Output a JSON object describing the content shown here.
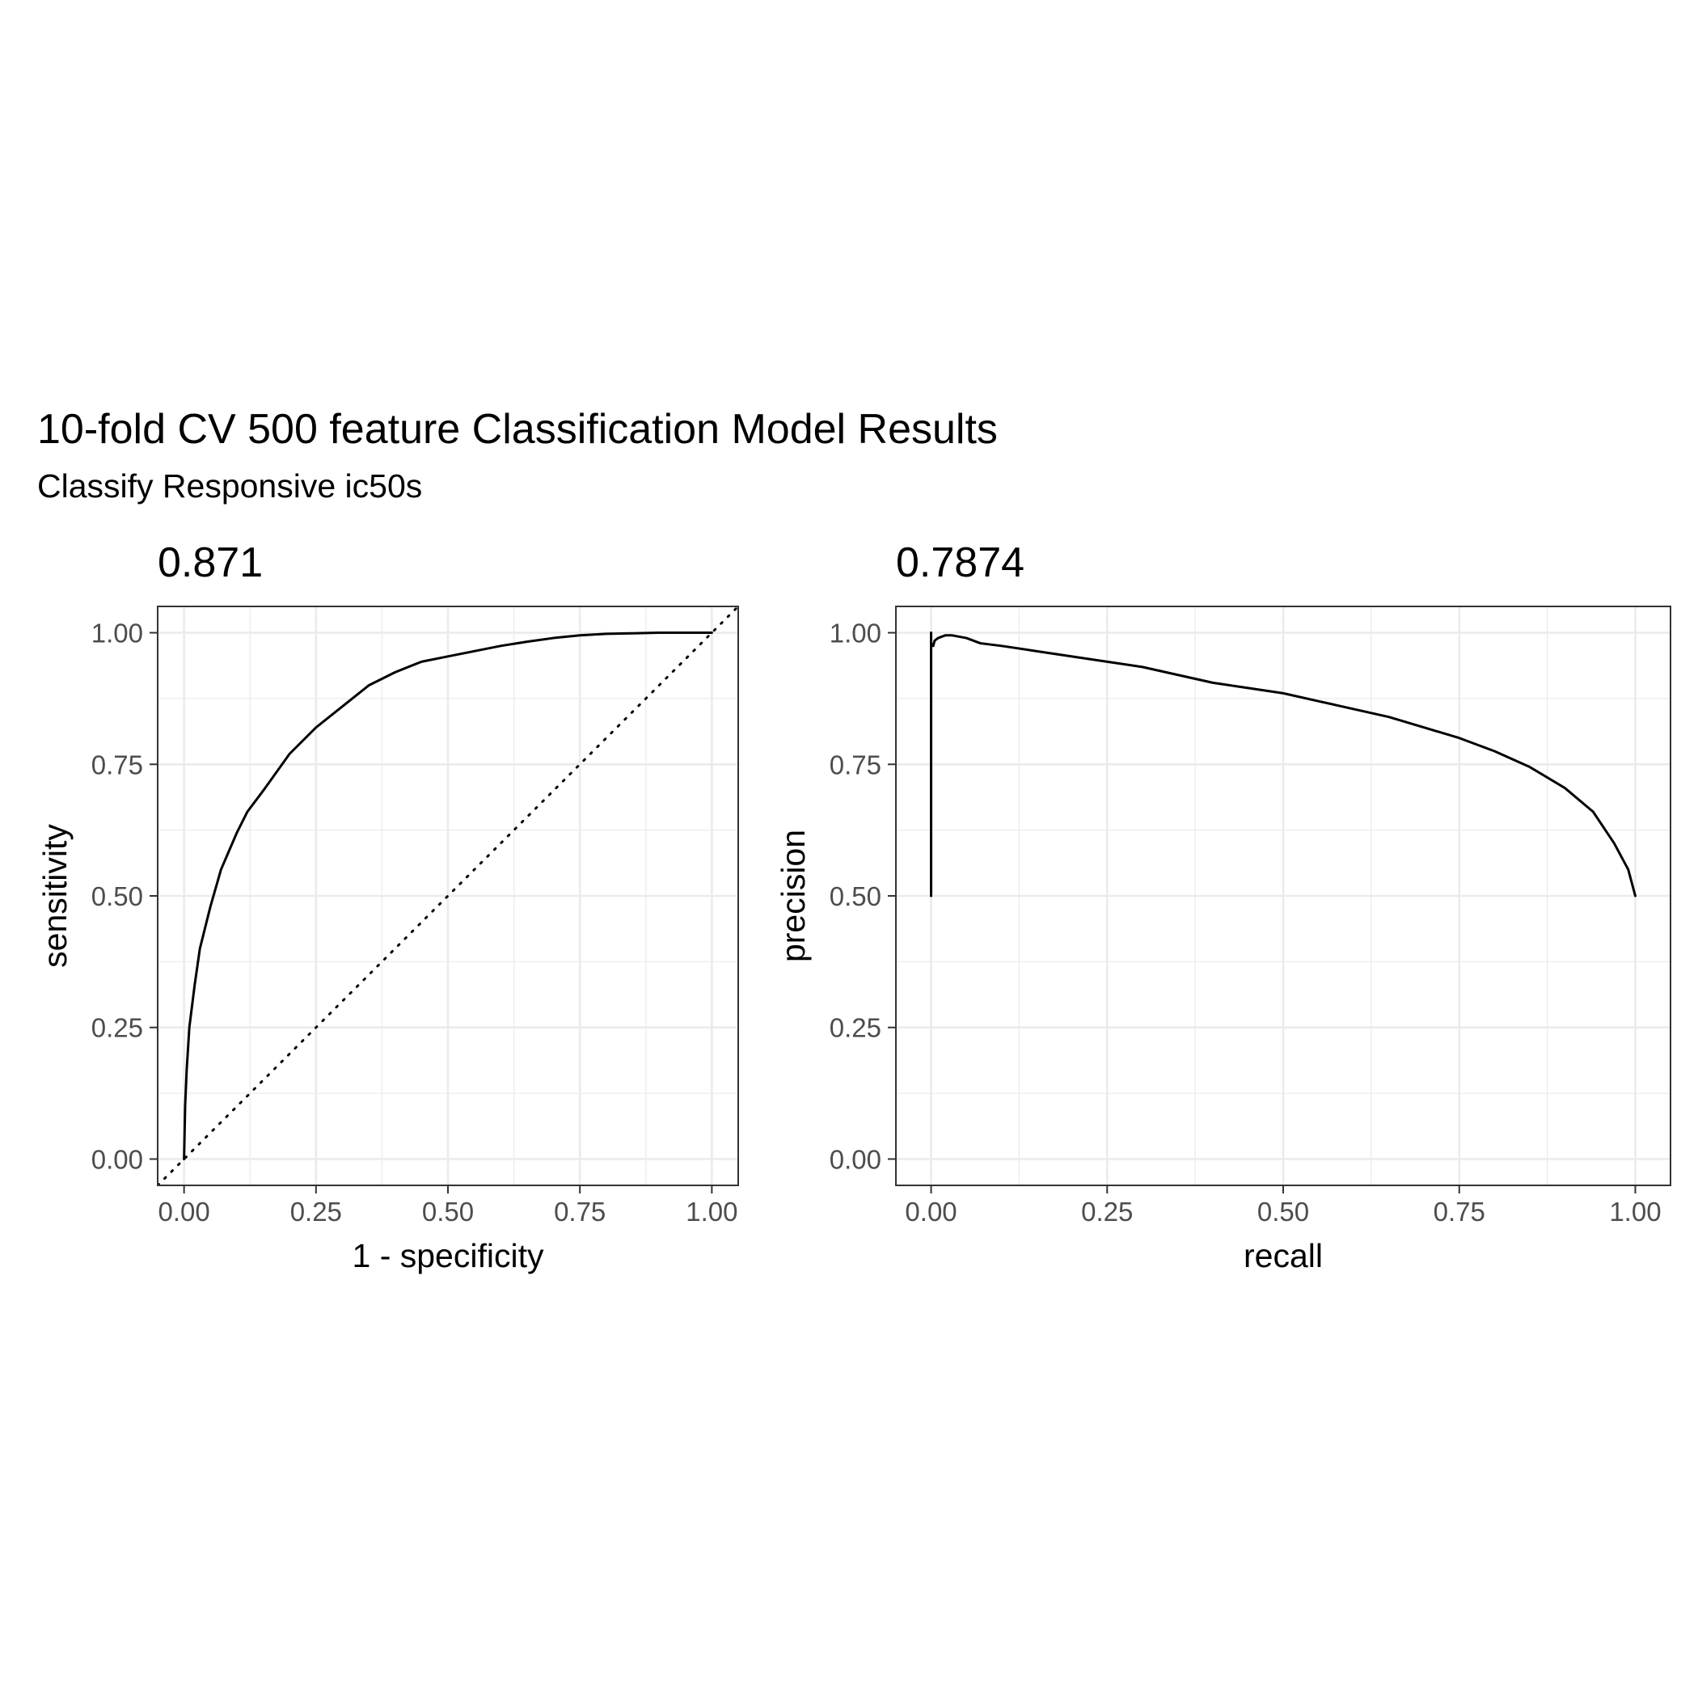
{
  "figure": {
    "title": "10-fold CV 500 feature Classification Model Results",
    "subtitle": "Classify Responsive ic50s"
  },
  "chart_data": [
    {
      "type": "line",
      "panel": "roc",
      "title": "0.871",
      "xlabel": "1 - specificity",
      "ylabel": "sensitivity",
      "xlim": [
        -0.05,
        1.05
      ],
      "ylim": [
        -0.05,
        1.05
      ],
      "xticks": [
        0,
        0.25,
        0.5,
        0.75,
        1
      ],
      "yticks": [
        0,
        0.25,
        0.5,
        0.75,
        1
      ],
      "xtick_labels": [
        "0.00",
        "0.25",
        "0.50",
        "0.75",
        "1.00"
      ],
      "ytick_labels": [
        "0.00",
        "0.25",
        "0.50",
        "0.75",
        "1.00"
      ],
      "grid": true,
      "reference_line": {
        "style": "dotted",
        "from": [
          0,
          0
        ],
        "to": [
          1,
          1
        ]
      },
      "series": [
        {
          "name": "ROC curve",
          "x": [
            0,
            0.002,
            0.005,
            0.01,
            0.02,
            0.03,
            0.05,
            0.07,
            0.1,
            0.12,
            0.15,
            0.2,
            0.25,
            0.3,
            0.35,
            0.4,
            0.45,
            0.5,
            0.55,
            0.6,
            0.65,
            0.7,
            0.75,
            0.8,
            0.85,
            0.9,
            0.95,
            1.0
          ],
          "y": [
            0,
            0.1,
            0.17,
            0.25,
            0.33,
            0.4,
            0.48,
            0.55,
            0.62,
            0.66,
            0.7,
            0.77,
            0.82,
            0.86,
            0.9,
            0.925,
            0.945,
            0.955,
            0.965,
            0.975,
            0.983,
            0.99,
            0.995,
            0.998,
            0.999,
            1.0,
            1.0,
            1.0
          ]
        }
      ]
    },
    {
      "type": "line",
      "panel": "pr",
      "title": "0.7874",
      "xlabel": "recall",
      "ylabel": "precision",
      "xlim": [
        -0.05,
        1.05
      ],
      "ylim": [
        -0.05,
        1.05
      ],
      "xticks": [
        0,
        0.25,
        0.5,
        0.75,
        1
      ],
      "yticks": [
        0,
        0.25,
        0.5,
        0.75,
        1
      ],
      "xtick_labels": [
        "0.00",
        "0.25",
        "0.50",
        "0.75",
        "1.00"
      ],
      "ytick_labels": [
        "0.00",
        "0.25",
        "0.50",
        "0.75",
        "1.00"
      ],
      "grid": true,
      "series": [
        {
          "name": "PR curve",
          "x": [
            0,
            0,
            0,
            0.003,
            0.005,
            0.01,
            0.02,
            0.03,
            0.05,
            0.07,
            0.1,
            0.15,
            0.2,
            0.25,
            0.3,
            0.35,
            0.4,
            0.45,
            0.5,
            0.55,
            0.6,
            0.65,
            0.7,
            0.75,
            0.8,
            0.85,
            0.9,
            0.94,
            0.97,
            0.99,
            1.0
          ],
          "y": [
            0.5,
            1.0,
            0.98,
            0.975,
            0.985,
            0.99,
            0.995,
            0.995,
            0.99,
            0.98,
            0.975,
            0.965,
            0.955,
            0.945,
            0.935,
            0.92,
            0.905,
            0.895,
            0.885,
            0.87,
            0.855,
            0.84,
            0.82,
            0.8,
            0.775,
            0.745,
            0.705,
            0.66,
            0.6,
            0.55,
            0.5
          ]
        }
      ]
    }
  ]
}
